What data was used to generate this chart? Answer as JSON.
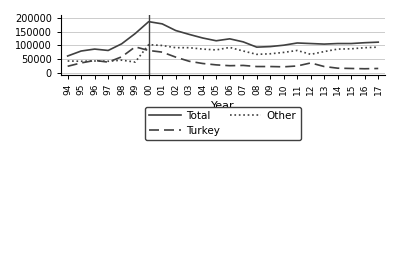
{
  "years": [
    1994,
    1995,
    1996,
    1997,
    1998,
    1999,
    2000,
    2001,
    2002,
    2003,
    2004,
    2005,
    2006,
    2007,
    2008,
    2009,
    2010,
    2011,
    2012,
    2013,
    2014,
    2015,
    2016,
    2017
  ],
  "total": [
    62000,
    80000,
    87000,
    82000,
    106000,
    143000,
    186000,
    178000,
    154000,
    140000,
    127000,
    117000,
    124000,
    113000,
    94000,
    96000,
    101000,
    109000,
    107000,
    105000,
    107000,
    107000,
    110000,
    112000
  ],
  "turkey": [
    25000,
    37000,
    46000,
    40000,
    59000,
    95000,
    82000,
    76000,
    58000,
    43000,
    35000,
    30000,
    27000,
    28000,
    24000,
    24000,
    23000,
    26000,
    37000,
    24000,
    18000,
    17000,
    16000,
    17000
  ],
  "other": [
    44000,
    43000,
    44000,
    43000,
    47000,
    40000,
    103000,
    100000,
    92000,
    92000,
    87000,
    84000,
    93000,
    80000,
    68000,
    70000,
    75000,
    82000,
    68000,
    78000,
    87000,
    88000,
    92000,
    94000
  ],
  "vline_x": 2000,
  "ylabel_left": "",
  "yticks": [
    0,
    50000,
    100000,
    150000,
    200000
  ],
  "ytick_labels": [
    "0",
    "50000",
    "100000",
    "150000",
    "200000"
  ],
  "xlabel": "Year",
  "line_color": "#404040",
  "bg_color": "#ffffff",
  "grid_color": "#cccccc"
}
